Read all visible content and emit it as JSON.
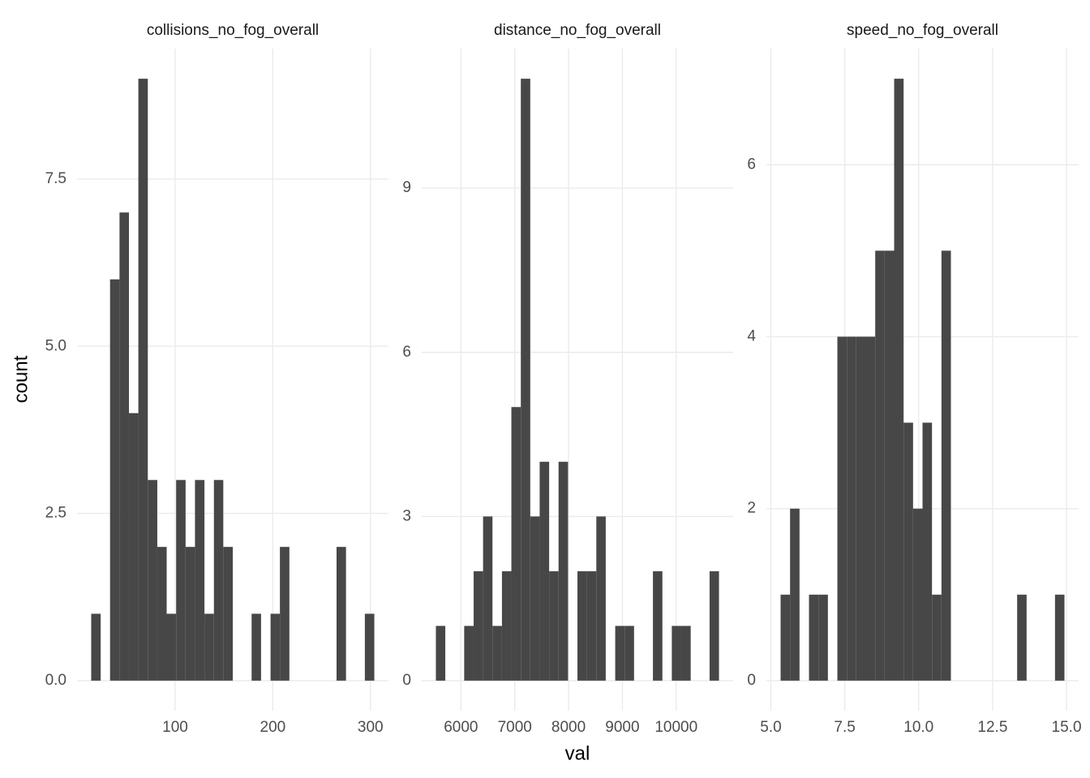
{
  "chart_data": [
    {
      "type": "histogram",
      "title": "collisions_no_fog_overall",
      "ylabel": "count",
      "color": "#474747",
      "grid": true,
      "bins": [
        14,
        23.7,
        33.3,
        43,
        52.7,
        62.3,
        72,
        81.7,
        91.3,
        101,
        110.7,
        120.3,
        130,
        139.7,
        149.3,
        159,
        168.7,
        178.3,
        188,
        197.7,
        207.3,
        217,
        226.7,
        236.3,
        246,
        255.7,
        265.3,
        275,
        284.7,
        294.3,
        304
      ],
      "counts": [
        1,
        0,
        6,
        7,
        4,
        9,
        3,
        2,
        1,
        3,
        2,
        3,
        1,
        3,
        2,
        0,
        0,
        1,
        0,
        1,
        2,
        0,
        0,
        0,
        0,
        0,
        2,
        0,
        0,
        1
      ],
      "xlim": [
        -0.5,
        318.5
      ],
      "ylim": [
        -0.45,
        9.45
      ],
      "xticks": [
        100,
        200,
        300
      ],
      "yticks": [
        {
          "value": 0,
          "label": "0.0"
        },
        {
          "value": 2.5,
          "label": "2.5"
        },
        {
          "value": 5,
          "label": "5.0"
        },
        {
          "value": 7.5,
          "label": "7.5"
        }
      ]
    },
    {
      "type": "histogram",
      "title": "distance_no_fog_overall",
      "xlabel": "val",
      "color": "#474747",
      "grid": true,
      "bins": [
        5534,
        5709,
        5885,
        6060,
        6236,
        6411,
        6586,
        6762,
        6937,
        7113,
        7288,
        7463,
        7639,
        7814,
        7990,
        8165,
        8340,
        8516,
        8691,
        8867,
        9042,
        9217,
        9393,
        9568,
        9744,
        9919,
        10094,
        10270,
        10445,
        10621,
        10796
      ],
      "counts": [
        1,
        0,
        0,
        1,
        2,
        3,
        1,
        2,
        5,
        11,
        3,
        4,
        2,
        4,
        0,
        2,
        2,
        3,
        0,
        1,
        1,
        0,
        0,
        2,
        0,
        1,
        1,
        0,
        0,
        2
      ],
      "xlim": [
        5271,
        11059
      ],
      "ylim": [
        -0.55,
        11.55
      ],
      "xticks": [
        6000,
        7000,
        8000,
        9000,
        10000
      ],
      "yticks": [
        0,
        3,
        6,
        9
      ]
    },
    {
      "type": "histogram",
      "title": "speed_no_fog_overall",
      "color": "#474747",
      "grid": true,
      "bins": [
        5.33,
        5.65,
        5.97,
        6.29,
        6.61,
        6.93,
        7.25,
        7.57,
        7.89,
        8.21,
        8.53,
        8.85,
        9.17,
        9.49,
        9.81,
        10.13,
        10.45,
        10.77,
        11.09,
        11.41,
        11.73,
        12.05,
        12.37,
        12.69,
        13.01,
        13.33,
        13.65,
        13.97,
        14.29,
        14.61,
        14.93
      ],
      "counts": [
        1,
        2,
        0,
        1,
        1,
        0,
        4,
        4,
        4,
        4,
        5,
        5,
        7,
        3,
        2,
        3,
        1,
        5,
        0,
        0,
        0,
        0,
        0,
        0,
        0,
        1,
        0,
        0,
        0,
        1
      ],
      "xlim": [
        4.85,
        15.41
      ],
      "ylim": [
        -0.35,
        7.35
      ],
      "xticks": [
        {
          "value": 5,
          "label": "5.0"
        },
        {
          "value": 7.5,
          "label": "7.5"
        },
        {
          "value": 10,
          "label": "10.0"
        },
        {
          "value": 12.5,
          "label": "12.5"
        },
        {
          "value": 15,
          "label": "15.0"
        }
      ],
      "yticks": [
        0,
        2,
        4,
        6
      ]
    }
  ]
}
